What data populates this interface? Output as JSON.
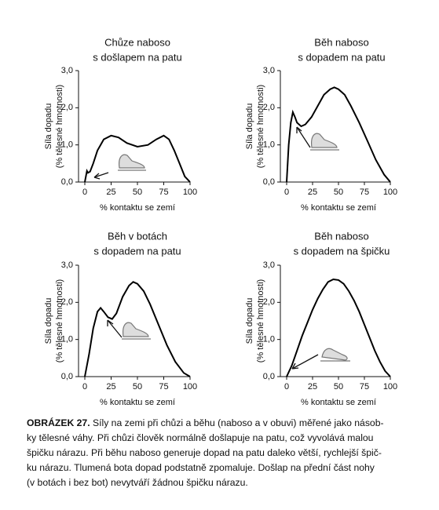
{
  "chart_data": [
    {
      "type": "line",
      "title": [
        "Chůze naboso",
        "s došlapem na patu"
      ],
      "xlabel": "% kontaktu se zemí",
      "ylabel": [
        "Síla dopadu",
        "(% tělesné hmotnosti)"
      ],
      "x": [
        0,
        2,
        3,
        5,
        8,
        12,
        18,
        25,
        32,
        40,
        50,
        60,
        68,
        75,
        80,
        85,
        90,
        95,
        100
      ],
      "values": [
        0,
        0.3,
        0.25,
        0.28,
        0.5,
        0.85,
        1.15,
        1.25,
        1.2,
        1.05,
        0.95,
        1.0,
        1.15,
        1.25,
        1.15,
        0.85,
        0.5,
        0.15,
        0
      ],
      "color": "#000000",
      "xlim": [
        0,
        100
      ],
      "ylim": [
        0,
        3
      ],
      "xticks": [
        0,
        25,
        50,
        75,
        100
      ],
      "yticks": [
        {
          "value": 0,
          "label": "0,0"
        },
        {
          "value": 1,
          "label": "1,0"
        },
        {
          "value": 2,
          "label": "2,0"
        },
        {
          "value": 3,
          "label": "3,0"
        }
      ]
    },
    {
      "type": "line",
      "title": [
        "Běh naboso",
        "s dopadem na patu"
      ],
      "xlabel": "% kontaktu se zemí",
      "ylabel": [
        "Síla dopadu",
        "(% tělesné hmotnosti)"
      ],
      "x": [
        0,
        2,
        4,
        6,
        8,
        10,
        14,
        18,
        24,
        30,
        36,
        42,
        46,
        50,
        56,
        62,
        70,
        78,
        86,
        94,
        100
      ],
      "values": [
        0,
        1.0,
        1.6,
        1.88,
        1.75,
        1.6,
        1.5,
        1.55,
        1.75,
        2.05,
        2.35,
        2.5,
        2.55,
        2.5,
        2.35,
        2.05,
        1.6,
        1.1,
        0.6,
        0.2,
        0
      ],
      "color": "#000000",
      "xlim": [
        0,
        100
      ],
      "ylim": [
        0,
        3
      ],
      "xticks": [
        0,
        25,
        50,
        75,
        100
      ],
      "yticks": [
        {
          "value": 0,
          "label": "0,0"
        },
        {
          "value": 1,
          "label": "1,0"
        },
        {
          "value": 2,
          "label": "2,0"
        },
        {
          "value": 3,
          "label": "3,0"
        }
      ]
    },
    {
      "type": "line",
      "title": [
        "Běh v botách",
        "s dopadem na patu"
      ],
      "xlabel": "% kontaktu se zemí",
      "ylabel": [
        "Síla dopadu",
        "(% tělesné hmotnosti)"
      ],
      "x": [
        0,
        4,
        8,
        12,
        15,
        18,
        22,
        26,
        30,
        36,
        42,
        46,
        50,
        56,
        62,
        70,
        78,
        86,
        94,
        100
      ],
      "values": [
        0,
        0.6,
        1.3,
        1.75,
        1.85,
        1.75,
        1.6,
        1.55,
        1.7,
        2.15,
        2.45,
        2.55,
        2.5,
        2.3,
        1.95,
        1.4,
        0.85,
        0.4,
        0.1,
        0
      ],
      "color": "#000000",
      "xlim": [
        0,
        100
      ],
      "ylim": [
        0,
        3
      ],
      "xticks": [
        0,
        25,
        50,
        75,
        100
      ],
      "yticks": [
        {
          "value": 0,
          "label": "0,0"
        },
        {
          "value": 1,
          "label": "1,0"
        },
        {
          "value": 2,
          "label": "2,0"
        },
        {
          "value": 3,
          "label": "3,0"
        }
      ]
    },
    {
      "type": "line",
      "title": [
        "Běh naboso",
        "s dopadem na špičku"
      ],
      "xlabel": "% kontaktu se zemí",
      "ylabel": [
        "Síla dopadu",
        "(% tělesné hmotnosti)"
      ],
      "x": [
        0,
        5,
        10,
        15,
        20,
        25,
        30,
        35,
        40,
        45,
        50,
        55,
        60,
        65,
        70,
        75,
        80,
        85,
        90,
        95,
        100
      ],
      "values": [
        0,
        0.3,
        0.7,
        1.1,
        1.45,
        1.8,
        2.1,
        2.35,
        2.55,
        2.62,
        2.6,
        2.5,
        2.3,
        2.05,
        1.75,
        1.4,
        1.05,
        0.7,
        0.4,
        0.15,
        0
      ],
      "color": "#000000",
      "xlim": [
        0,
        100
      ],
      "ylim": [
        0,
        3
      ],
      "xticks": [
        0,
        25,
        50,
        75,
        100
      ],
      "yticks": [
        {
          "value": 0,
          "label": "0,0"
        },
        {
          "value": 1,
          "label": "1,0"
        },
        {
          "value": 2,
          "label": "2,0"
        },
        {
          "value": 3,
          "label": "3,0"
        }
      ]
    }
  ],
  "caption": {
    "label": "OBRÁZEK 27.",
    "lines": [
      " Síly na zemi při chůzi a běhu (naboso a v obuvi) měřené jako násob-",
      "ky tělesné váhy. Při chůzi člověk normálně došlapuje na patu, což vyvolává malou",
      "špičku nárazu. Při běhu naboso generuje dopad na patu daleko větší, rychlejší špič-",
      "ku nárazu. Tlumená bota dopad podstatně zpomaluje. Došlap na přední část nohy",
      "(v botách i bez bot) nevytváří žádnou špičku nárazu."
    ]
  }
}
